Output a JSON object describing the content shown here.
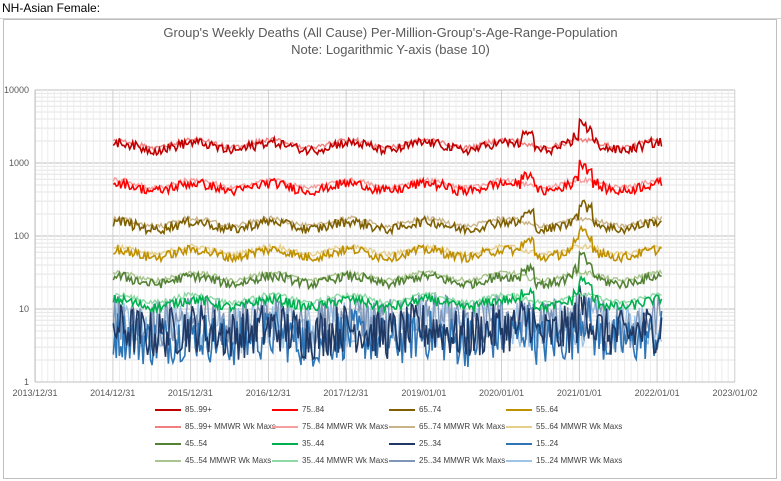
{
  "sheet_label": "NH-Asian Female:",
  "chart_data": {
    "type": "line",
    "title": "Group's Weekly Deaths (All Cause) Per-Million-Group's-Age-Range-Population",
    "subtitle": "Note: Logarithmic Y-axis (base 10)",
    "y_scale": "log10",
    "ylim": [
      1,
      10000
    ],
    "y_ticks": [
      "1",
      "10",
      "100",
      "1000",
      "10000"
    ],
    "x_ticks": [
      "2013/12/31",
      "2014/12/31",
      "2015/12/31",
      "2016/12/31",
      "2017/12/31",
      "2019/01/01",
      "2020/01/01",
      "2021/01/01",
      "2022/01/01",
      "2023/01/02"
    ],
    "xlim": [
      "2013/12/31",
      "2023/01/02"
    ],
    "data_range": [
      "2015/01/03",
      "2022/01/22"
    ],
    "grid": true,
    "legend_position": "bottom",
    "series": [
      {
        "name": "85..99+",
        "color": "#c00000",
        "level": 1700,
        "kind": "deaths"
      },
      {
        "name": "75..84",
        "color": "#ff0000",
        "level": 470,
        "kind": "deaths"
      },
      {
        "name": "65..74",
        "color": "#7f6000",
        "level": 140,
        "kind": "deaths"
      },
      {
        "name": "55..64",
        "color": "#bf9000",
        "level": 58,
        "kind": "deaths"
      },
      {
        "name": "85..99+ MMWR Wk Maxs",
        "color": "#f08080",
        "level": 1850,
        "kind": "max"
      },
      {
        "name": "75..84 MMWR Wk Maxs",
        "color": "#f4a0a0",
        "level": 520,
        "kind": "max"
      },
      {
        "name": "65..74 MMWR Wk Maxs",
        "color": "#c9b48a",
        "level": 155,
        "kind": "max"
      },
      {
        "name": "55..64 MMWR Wk Maxs",
        "color": "#e6cf8c",
        "level": 64,
        "kind": "max"
      },
      {
        "name": "45..54",
        "color": "#548235",
        "level": 25,
        "kind": "deaths"
      },
      {
        "name": "35..44",
        "color": "#00b050",
        "level": 12,
        "kind": "deaths"
      },
      {
        "name": "25..34",
        "color": "#1f3864",
        "level": 5,
        "kind": "deaths"
      },
      {
        "name": "15..24",
        "color": "#2e75b6",
        "level": 4,
        "kind": "deaths"
      },
      {
        "name": "45..54 MMWR Wk Maxs",
        "color": "#a9c48e",
        "level": 28,
        "kind": "max"
      },
      {
        "name": "35..44 MMWR Wk Maxs",
        "color": "#8fd9a8",
        "level": 14,
        "kind": "max"
      },
      {
        "name": "25..34 MMWR Wk Maxs",
        "color": "#7f96b8",
        "level": 7,
        "kind": "max"
      },
      {
        "name": "15..24 MMWR Wk Maxs",
        "color": "#9dc3e6",
        "level": 6,
        "kind": "max"
      }
    ]
  }
}
